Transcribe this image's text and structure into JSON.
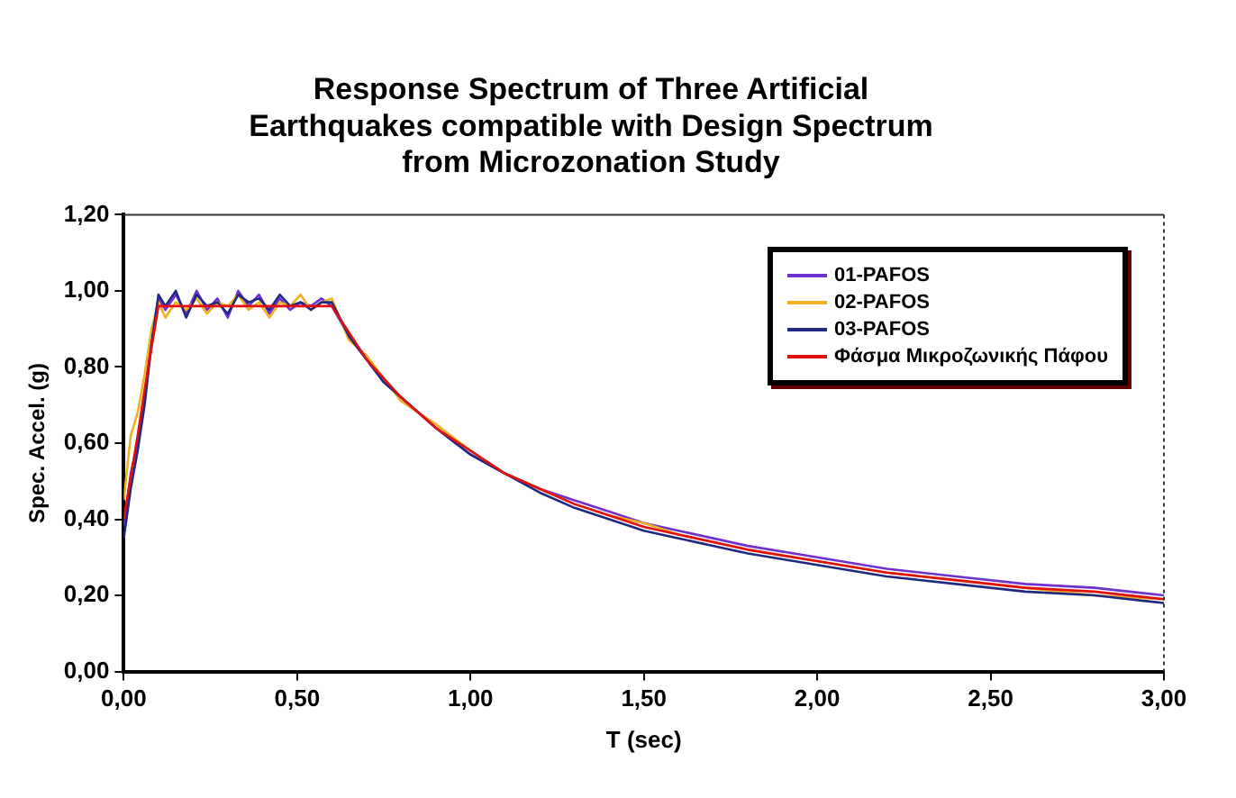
{
  "chart_data": {
    "type": "line",
    "title": "Response Spectrum of Three Artificial\nEarthquakes compatible with Design Spectrum\nfrom Microzonation Study",
    "xlabel": "T (sec)",
    "ylabel": "Spec. Accel. (g)",
    "x": [
      0,
      0.02,
      0.04,
      0.06,
      0.08,
      0.1,
      0.12,
      0.15,
      0.18,
      0.21,
      0.24,
      0.27,
      0.3,
      0.33,
      0.36,
      0.39,
      0.42,
      0.45,
      0.48,
      0.51,
      0.54,
      0.57,
      0.6,
      0.65,
      0.7,
      0.75,
      0.8,
      0.9,
      1.0,
      1.1,
      1.2,
      1.3,
      1.4,
      1.5,
      1.6,
      1.8,
      2.0,
      2.2,
      2.4,
      2.6,
      2.8,
      3.0
    ],
    "series": [
      {
        "name": "01-PAFOS",
        "color": "#7030d0",
        "values": [
          0.38,
          0.52,
          0.6,
          0.72,
          0.88,
          0.98,
          0.95,
          0.99,
          0.94,
          1.0,
          0.95,
          0.98,
          0.93,
          1.0,
          0.96,
          0.99,
          0.94,
          0.98,
          0.95,
          0.97,
          0.96,
          0.98,
          0.96,
          0.88,
          0.82,
          0.76,
          0.72,
          0.64,
          0.57,
          0.52,
          0.48,
          0.45,
          0.42,
          0.39,
          0.37,
          0.33,
          0.3,
          0.27,
          0.25,
          0.23,
          0.22,
          0.2
        ]
      },
      {
        "name": "02-PAFOS",
        "color": "#f0b020",
        "values": [
          0.45,
          0.62,
          0.68,
          0.78,
          0.9,
          0.97,
          0.93,
          0.97,
          0.95,
          0.98,
          0.94,
          0.97,
          0.96,
          0.99,
          0.95,
          0.97,
          0.93,
          0.97,
          0.96,
          0.99,
          0.95,
          0.97,
          0.98,
          0.87,
          0.83,
          0.77,
          0.71,
          0.65,
          0.58,
          0.52,
          0.48,
          0.44,
          0.41,
          0.39,
          0.36,
          0.32,
          0.29,
          0.26,
          0.24,
          0.22,
          0.2,
          0.19
        ]
      },
      {
        "name": "03-PAFOS",
        "color": "#202880",
        "values": [
          0.35,
          0.48,
          0.58,
          0.7,
          0.86,
          0.99,
          0.96,
          1.0,
          0.93,
          0.99,
          0.96,
          0.97,
          0.94,
          0.99,
          0.97,
          0.98,
          0.95,
          0.99,
          0.96,
          0.97,
          0.95,
          0.97,
          0.97,
          0.88,
          0.82,
          0.76,
          0.72,
          0.64,
          0.57,
          0.52,
          0.47,
          0.43,
          0.4,
          0.37,
          0.35,
          0.31,
          0.28,
          0.25,
          0.23,
          0.21,
          0.2,
          0.18
        ]
      },
      {
        "name": "Φάσμα Μικροζωνικής Πάφου",
        "color": "#e01010",
        "values": [
          0.4,
          0.51,
          0.62,
          0.74,
          0.85,
          0.96,
          0.96,
          0.96,
          0.96,
          0.96,
          0.96,
          0.96,
          0.96,
          0.96,
          0.96,
          0.96,
          0.96,
          0.96,
          0.96,
          0.96,
          0.96,
          0.96,
          0.96,
          0.89,
          0.82,
          0.77,
          0.72,
          0.64,
          0.58,
          0.52,
          0.48,
          0.44,
          0.41,
          0.38,
          0.36,
          0.32,
          0.29,
          0.26,
          0.24,
          0.22,
          0.21,
          0.19
        ]
      }
    ],
    "xlim": [
      0,
      3
    ],
    "xticks": [
      {
        "value": 0,
        "label": "0,00"
      },
      {
        "value": 0.5,
        "label": "0,50"
      },
      {
        "value": 1,
        "label": "1,00"
      },
      {
        "value": 1.5,
        "label": "1,50"
      },
      {
        "value": 2,
        "label": "2,00"
      },
      {
        "value": 2.5,
        "label": "2,50"
      },
      {
        "value": 3,
        "label": "3,00"
      }
    ],
    "ylim": [
      0,
      1.2
    ],
    "yticks": [
      {
        "value": 0,
        "label": "0,00"
      },
      {
        "value": 0.2,
        "label": "0,20"
      },
      {
        "value": 0.4,
        "label": "0,40"
      },
      {
        "value": 0.6,
        "label": "0,60"
      },
      {
        "value": 0.8,
        "label": "0,80"
      },
      {
        "value": 1,
        "label": "1,00"
      },
      {
        "value": 1.2,
        "label": "1,20"
      }
    ],
    "grid": false,
    "legend": "top right",
    "marker": "none",
    "line_style": "solid"
  }
}
